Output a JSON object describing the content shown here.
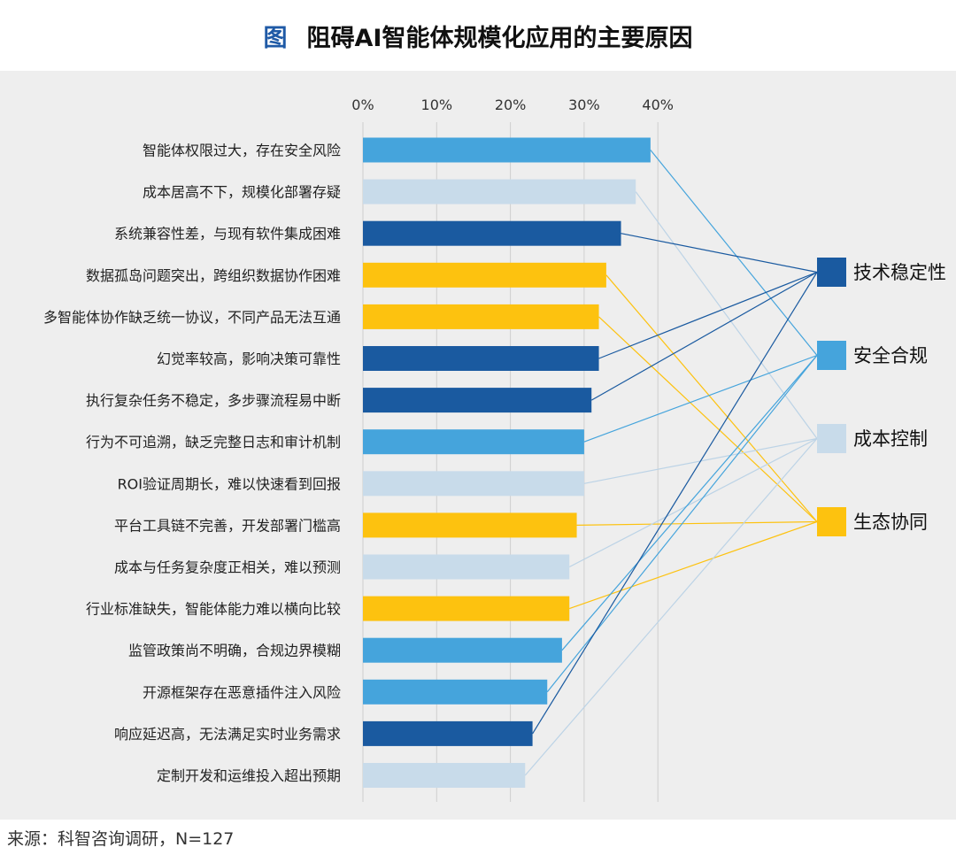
{
  "title": {
    "label": "图",
    "text": "阻碍AI智能体规模化应用的主要原因"
  },
  "source": "来源：科智咨询调研，N=127",
  "colors": {
    "tech": "#1a5aa0",
    "compliance": "#45a4dc",
    "cost": "#c8dbea",
    "ecosystem": "#fdc20f"
  },
  "chart_data": {
    "type": "bar",
    "orientation": "horizontal",
    "x_ticks": [
      "0%",
      "10%",
      "20%",
      "30%",
      "40%"
    ],
    "xlim": [
      0,
      40
    ],
    "grid": true,
    "legend_position": "right",
    "categories": [
      "智能体权限过大，存在安全风险",
      "成本居高不下，规模化部署存疑",
      "系统兼容性差，与现有软件集成困难",
      "数据孤岛问题突出，跨组织数据协作困难",
      "多智能体协作缺乏统一协议，不同产品无法互通",
      "幻觉率较高，影响决策可靠性",
      "执行复杂任务不稳定，多步骤流程易中断",
      "行为不可追溯，缺乏完整日志和审计机制",
      "ROI验证周期长，难以快速看到回报",
      "平台工具链不完善，开发部署门槛高",
      "成本与任务复杂度正相关，难以预测",
      "行业标准缺失，智能体能力难以横向比较",
      "监管政策尚不明确，合规边界模糊",
      "开源框架存在恶意插件注入风险",
      "响应延迟高，无法满足实时业务需求",
      "定制开发和运维投入超出预期"
    ],
    "values": [
      39,
      37,
      35,
      33,
      32,
      32,
      31,
      30,
      30,
      29,
      28,
      28,
      27,
      25,
      23,
      22
    ],
    "groups": [
      "compliance",
      "cost",
      "tech",
      "ecosystem",
      "ecosystem",
      "tech",
      "tech",
      "compliance",
      "cost",
      "ecosystem",
      "cost",
      "ecosystem",
      "compliance",
      "compliance",
      "tech",
      "cost"
    ],
    "legend": [
      {
        "key": "tech",
        "label": "技术稳定性"
      },
      {
        "key": "compliance",
        "label": "安全合规"
      },
      {
        "key": "cost",
        "label": "成本控制"
      },
      {
        "key": "ecosystem",
        "label": "生态协同"
      }
    ]
  }
}
